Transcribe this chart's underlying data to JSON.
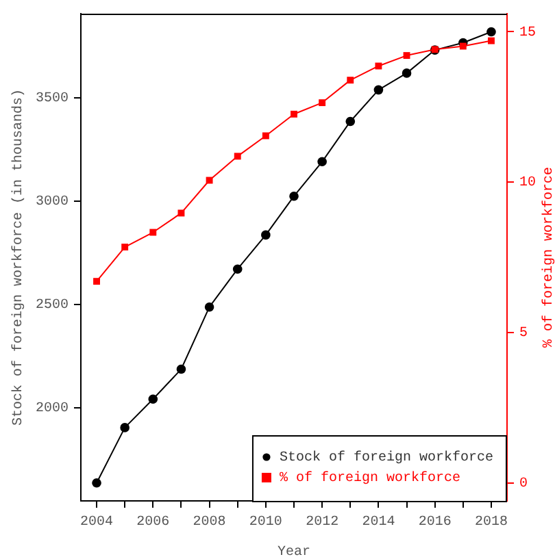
{
  "chart_data": {
    "type": "line",
    "xlabel": "Year",
    "ylabel": "Stock of foreign workforce (in thousands)",
    "y2label": "% of foreign workforce",
    "x": [
      2004,
      2005,
      2006,
      2007,
      2008,
      2009,
      2010,
      2011,
      2012,
      2013,
      2014,
      2015,
      2016,
      2017,
      2018
    ],
    "series": [
      {
        "name": "Stock of foreign workforce",
        "color": "#000000",
        "marker": "circle",
        "values": [
          1635,
          1903,
          2041,
          2186,
          2487,
          2671,
          2836,
          3024,
          3191,
          3386,
          3539,
          3620,
          3732,
          3767,
          3820
        ]
      },
      {
        "name": "% of foreign workforce",
        "color": "#ff0000",
        "marker": "square",
        "axis": "y2",
        "values": [
          6.7,
          7.84,
          8.33,
          8.97,
          10.06,
          10.86,
          11.54,
          12.26,
          12.64,
          13.39,
          13.86,
          14.21,
          14.41,
          14.52,
          14.7
        ]
      }
    ],
    "xlim": [
      2003.44,
      2018.56
    ],
    "xticks": [
      2004,
      {
        "value": 2005,
        "label": null
      },
      2006,
      {
        "value": 2007,
        "label": null
      },
      2008,
      {
        "value": 2009,
        "label": null
      },
      2010,
      {
        "value": 2011,
        "label": null
      },
      2012,
      {
        "value": 2013,
        "label": null
      },
      2014,
      {
        "value": 2015,
        "label": null
      },
      2016,
      {
        "value": 2017,
        "label": null
      },
      2018
    ],
    "ylim": [
      1548,
      3908
    ],
    "yticks": [
      2000,
      2500,
      3000,
      3500
    ],
    "y2lim": [
      -0.6,
      15.6
    ],
    "y2ticks": [
      0,
      5,
      10,
      15
    ],
    "grid": false,
    "legend": "bottom right",
    "line_style": "solid"
  }
}
